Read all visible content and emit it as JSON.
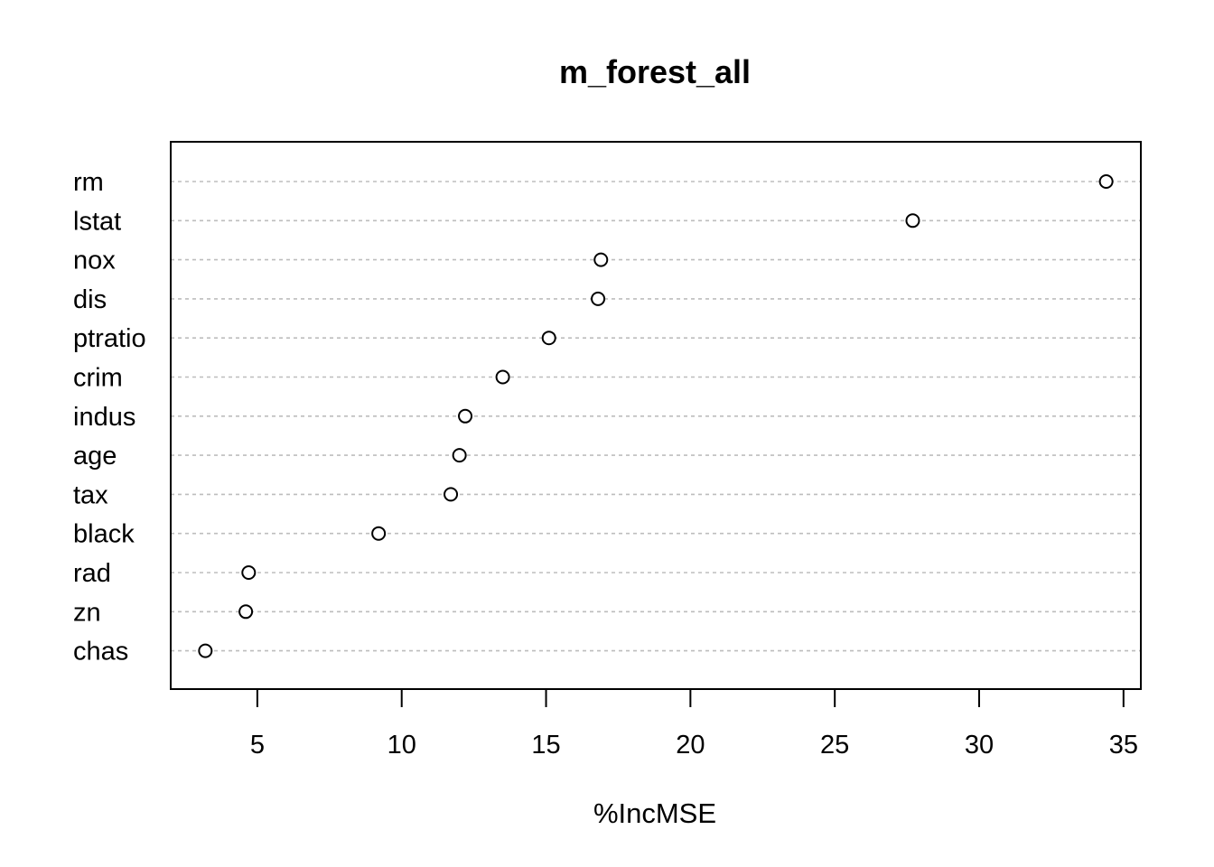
{
  "chart_data": {
    "type": "scatter",
    "title": "m_forest_all",
    "xlabel": "%IncMSE",
    "ylabel": "",
    "categories": [
      "rm",
      "lstat",
      "nox",
      "dis",
      "ptratio",
      "crim",
      "indus",
      "age",
      "tax",
      "black",
      "rad",
      "zn",
      "chas"
    ],
    "values": [
      34.4,
      27.7,
      16.9,
      16.8,
      15.1,
      13.5,
      12.2,
      12.0,
      11.7,
      9.2,
      4.7,
      4.6,
      3.2
    ],
    "xticks": [
      5,
      10,
      15,
      20,
      25,
      30,
      35
    ],
    "xlim": [
      2.0,
      35.6
    ],
    "grid": true,
    "legend": "none"
  }
}
